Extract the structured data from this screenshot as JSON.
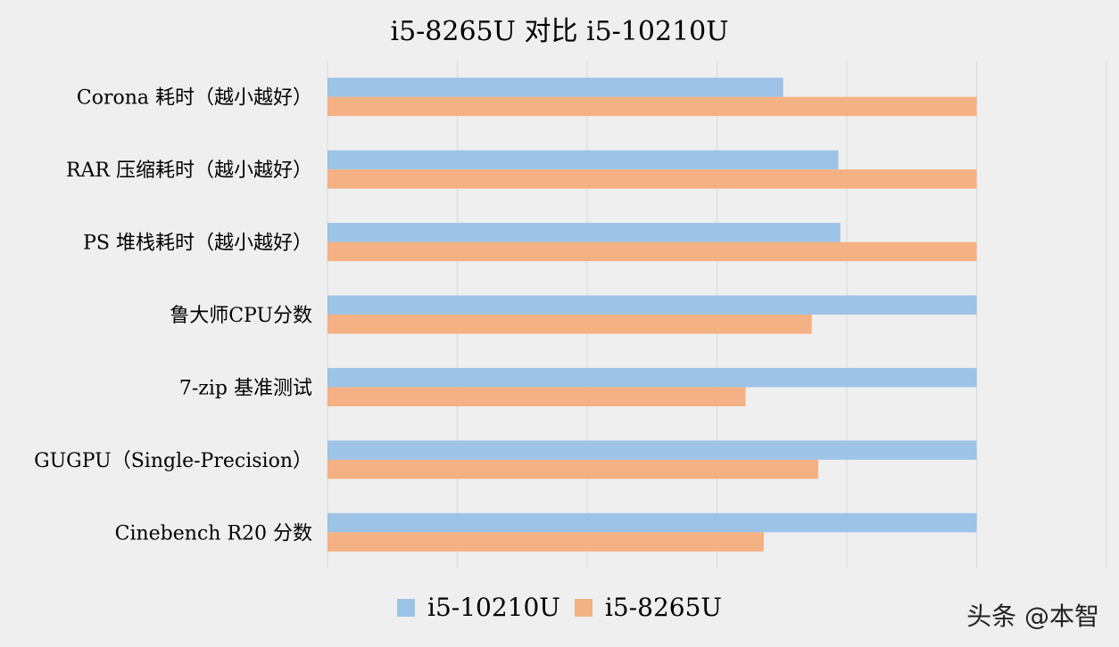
{
  "chart_data": {
    "type": "bar",
    "orientation": "horizontal",
    "title": "i5-8265U 对比 i5-10210U",
    "categories": [
      "Corona 耗时（越小越好）",
      "RAR 压缩耗时（越小越好）",
      "PS 堆栈耗时（越小越好）",
      "鲁大师CPU分数",
      "7-zip 基准测试",
      "GUGPU（Single-Precision）",
      "Cinebench R20 分数"
    ],
    "series": [
      {
        "name": "i5-10210U",
        "color": "#9dc3e6",
        "values": [
          70.2,
          78.7,
          79.0,
          100,
          100,
          100,
          100
        ]
      },
      {
        "name": "i5-8265U",
        "color": "#f4b183",
        "values": [
          100,
          100,
          100,
          74.6,
          64.4,
          75.6,
          67.2
        ]
      }
    ],
    "xlim": [
      0,
      120
    ],
    "grid": true,
    "legend_position": "bottom"
  },
  "watermark": "头条 @本智"
}
